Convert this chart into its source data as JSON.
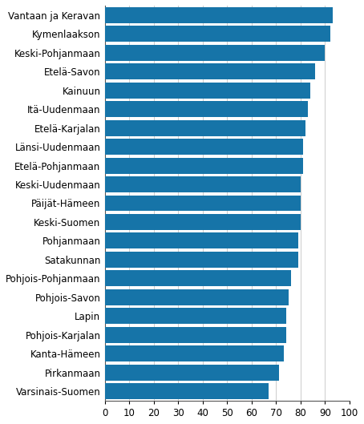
{
  "categories": [
    "Varsinais-Suomen",
    "Pirkanmaan",
    "Kanta-Hämeen",
    "Pohjois-Karjalan",
    "Lapin",
    "Pohjois-Savon",
    "Pohjois-Pohjanmaan",
    "Satakunnan",
    "Pohjanmaan",
    "Keski-Suomen",
    "Päijät-Hämeen",
    "Keski-Uudenmaan",
    "Etelä-Pohjanmaan",
    "Länsi-Uudenmaan",
    "Etelä-Karjalan",
    "Itä-Uudenmaan",
    "Kainuun",
    "Etelä-Savon",
    "Keski-Pohjanmaan",
    "Kymenlaakson",
    "Vantaan ja Keravan"
  ],
  "values": [
    67,
    71,
    73,
    74,
    74,
    75,
    76,
    79,
    79,
    80,
    80,
    80,
    81,
    81,
    82,
    83,
    84,
    86,
    90,
    92,
    93
  ],
  "bar_color": "#1674a8",
  "xlim": [
    0,
    100
  ],
  "xticks": [
    0,
    10,
    20,
    30,
    40,
    50,
    60,
    70,
    80,
    90,
    100
  ],
  "background_color": "#ffffff",
  "grid_color": "#cccccc",
  "bar_height": 0.85,
  "tick_fontsize": 8.5,
  "label_fontsize": 8.5
}
